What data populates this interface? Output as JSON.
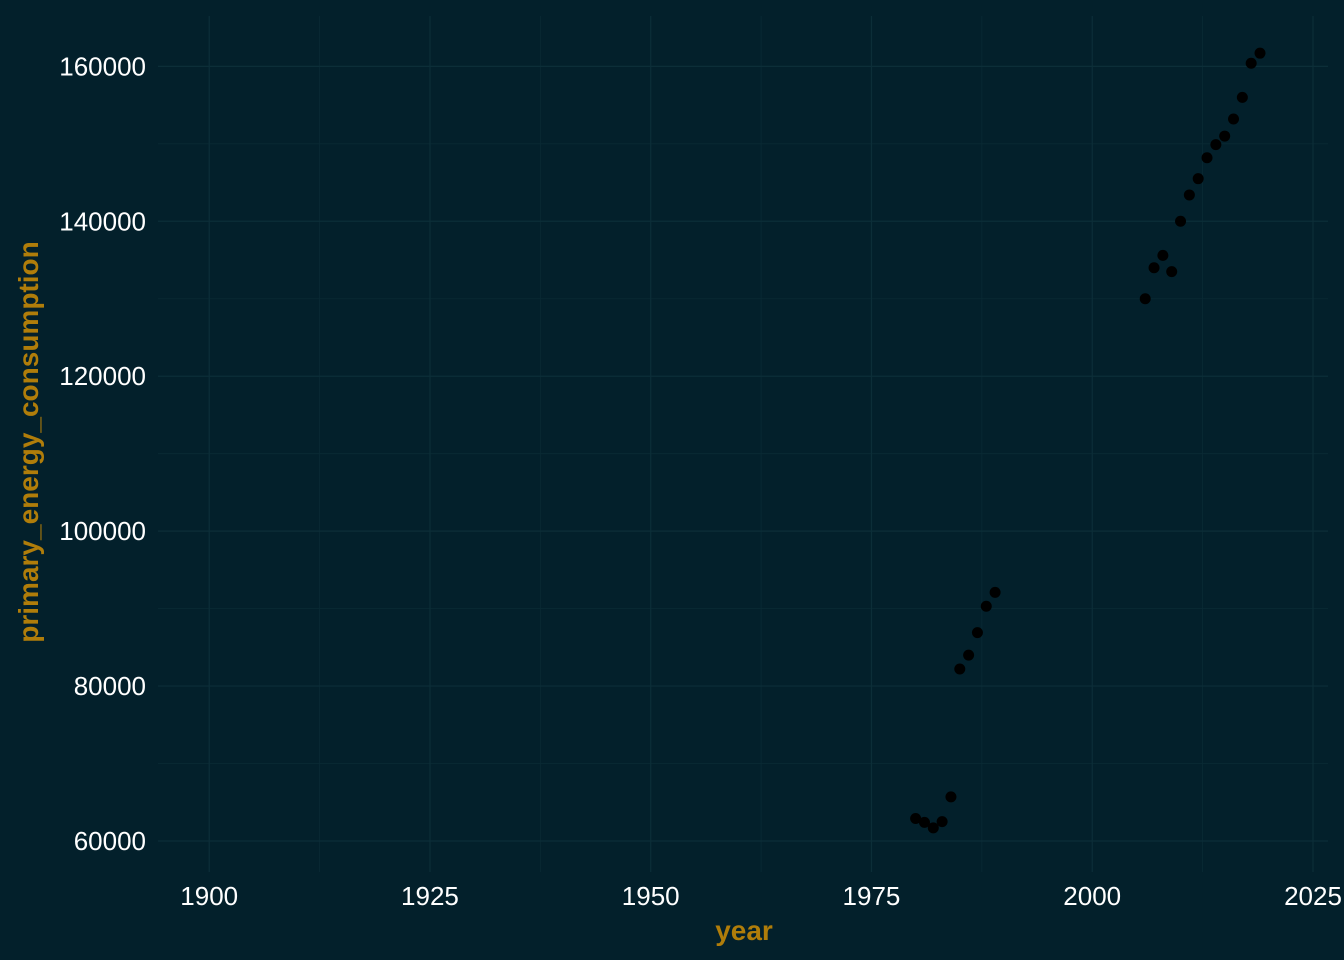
{
  "chart_data": {
    "type": "scatter",
    "title": "",
    "xlabel": "year",
    "ylabel": "primary_energy_consumption",
    "xlim": [
      1894.2,
      2026.7
    ],
    "ylim": [
      56000,
      166500
    ],
    "x_ticks": [
      1900,
      1925,
      1950,
      1975,
      2000,
      2025
    ],
    "x_tick_labels": [
      "1900",
      "1925",
      "1950",
      "1975",
      "2000",
      "2025"
    ],
    "x_minor_ticks": [
      1912.5,
      1937.5,
      1962.5,
      1987.5,
      2012.5
    ],
    "y_ticks": [
      60000,
      80000,
      100000,
      120000,
      140000,
      160000
    ],
    "y_tick_labels": [
      "60000",
      "80000",
      "100000",
      "120000",
      "140000",
      "160000"
    ],
    "y_minor_ticks": [
      70000,
      90000,
      110000,
      130000,
      150000
    ],
    "grid": true,
    "legend": "none",
    "colors": {
      "background": "#03202b",
      "grid": "#0c2e38",
      "points": "#000000",
      "tick_text": "#ffffff",
      "axis_title": "#b07d0a"
    },
    "series": [
      {
        "x": [
          1980,
          1981,
          1982,
          1983,
          1984,
          1985,
          1986,
          1987,
          1988,
          1989,
          2006,
          2007,
          2008,
          2009,
          2010,
          2011,
          2012,
          2013,
          2014,
          2015,
          2016,
          2017,
          2018,
          2019
        ],
        "y": [
          62900,
          62400,
          61700,
          62500,
          65700,
          82200,
          84000,
          86900,
          90300,
          92100,
          130000,
          134000,
          135600,
          133500,
          140000,
          143400,
          145500,
          148200,
          149900,
          151000,
          153200,
          156000,
          160400,
          161700
        ]
      }
    ]
  }
}
